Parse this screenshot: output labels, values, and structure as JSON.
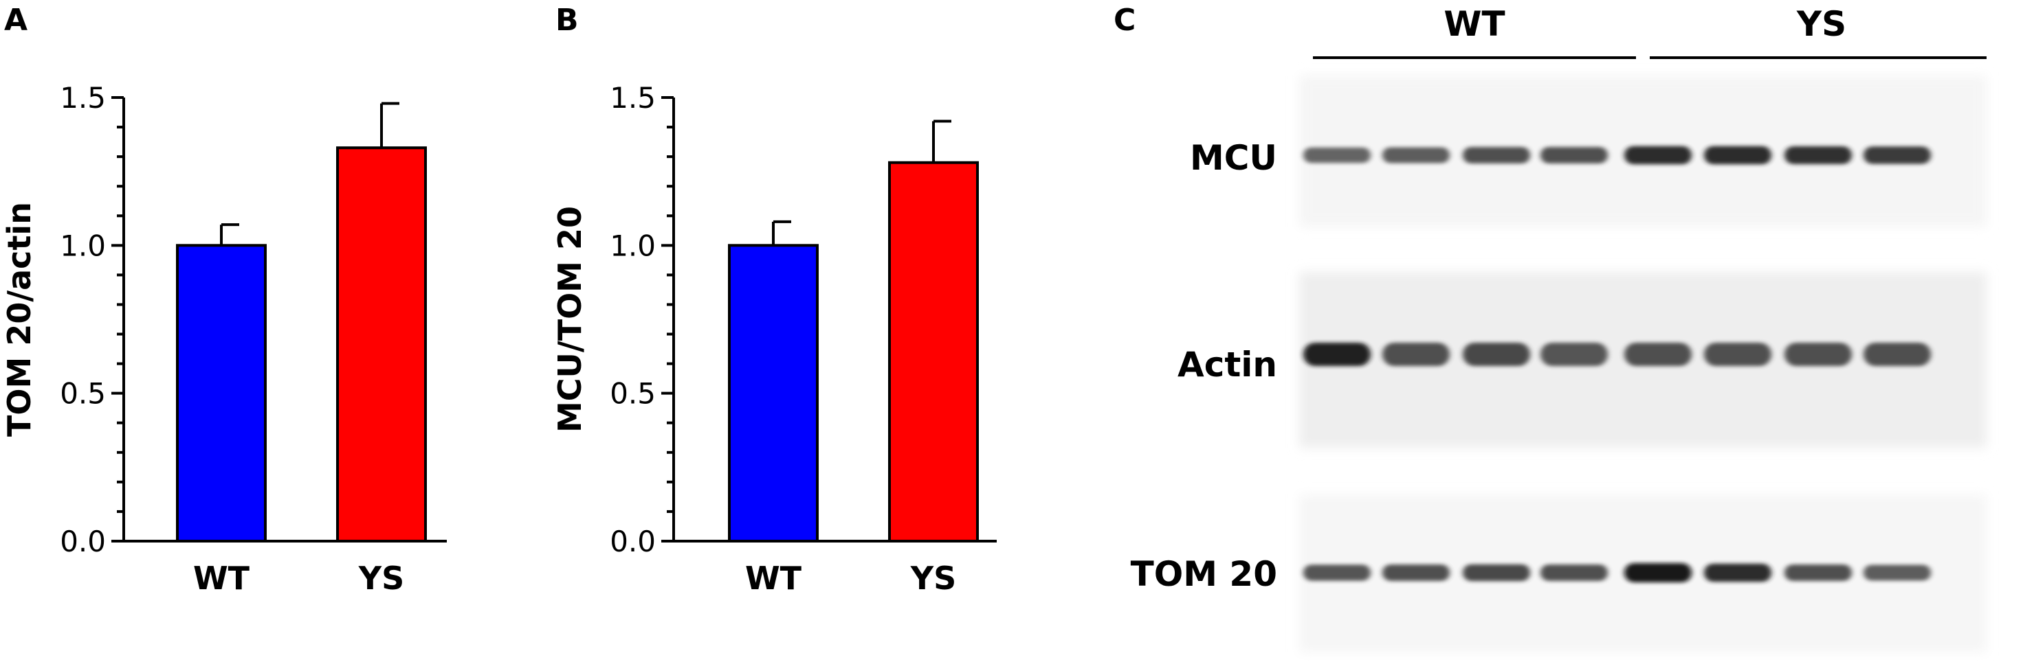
{
  "panels": {
    "a": {
      "letter": "A"
    },
    "b": {
      "letter": "B"
    },
    "c": {
      "letter": "C"
    }
  },
  "chart_data": [
    {
      "type": "bar",
      "panel": "A",
      "categories": [
        "WT",
        "YS"
      ],
      "values": [
        1.0,
        1.33
      ],
      "errors": [
        0.07,
        0.15
      ],
      "colors": [
        "#0000ff",
        "#ff0000"
      ],
      "ylabel": "TOM 20/actin",
      "xlabel": "",
      "ylim": [
        0,
        1.5
      ],
      "yticks": [
        "0.0",
        "0.5",
        "1.0",
        "1.5"
      ],
      "grid": false
    },
    {
      "type": "bar",
      "panel": "B",
      "categories": [
        "WT",
        "YS"
      ],
      "values": [
        1.0,
        1.28
      ],
      "errors": [
        0.08,
        0.14
      ],
      "colors": [
        "#0000ff",
        "#ff0000"
      ],
      "ylabel": "MCU/TOM 20",
      "xlabel": "",
      "ylim": [
        0,
        1.5
      ],
      "yticks": [
        "0.0",
        "0.5",
        "1.0",
        "1.5"
      ],
      "grid": false
    }
  ],
  "blot": {
    "groups": [
      "WT",
      "YS"
    ],
    "rows": [
      {
        "label": "MCU",
        "intensities": [
          0.45,
          0.5,
          0.6,
          0.6,
          0.85,
          0.85,
          0.8,
          0.75
        ]
      },
      {
        "label": "Actin",
        "intensities": [
          0.9,
          0.6,
          0.65,
          0.55,
          0.6,
          0.6,
          0.6,
          0.6
        ]
      },
      {
        "label": "TOM 20",
        "intensities": [
          0.55,
          0.6,
          0.65,
          0.6,
          1.0,
          0.85,
          0.6,
          0.5
        ]
      }
    ]
  }
}
